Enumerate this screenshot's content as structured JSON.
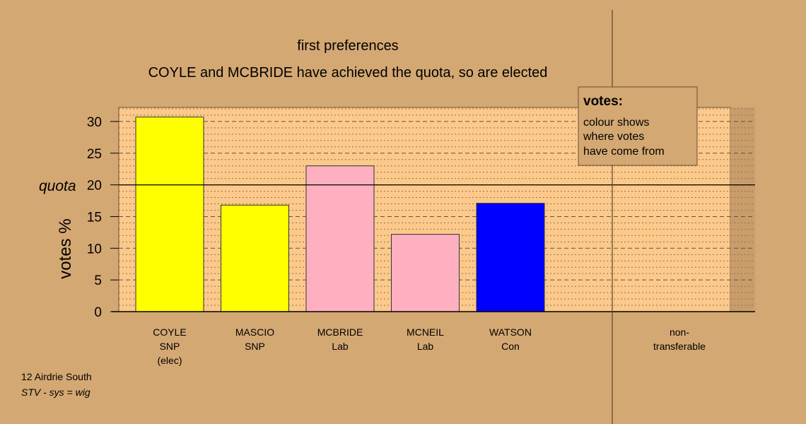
{
  "chart_data": {
    "type": "bar",
    "title": "first preferences",
    "subtitle": "COYLE and MCBRIDE have achieved the quota, so are elected",
    "ylabel": "votes %",
    "ylim": [
      0,
      32
    ],
    "yticks": [
      0,
      5,
      10,
      15,
      20,
      25,
      30
    ],
    "quota": 20,
    "quota_label": "quota",
    "categories": [
      {
        "name": "COYLE",
        "party": "SNP",
        "note": "(elec)",
        "value": 30.7,
        "color": "#ffff00"
      },
      {
        "name": "MASCIO",
        "party": "SNP",
        "note": "",
        "value": 16.8,
        "color": "#ffff00"
      },
      {
        "name": "MCBRIDE",
        "party": "Lab",
        "note": "",
        "value": 23.0,
        "color": "#ffb0c0"
      },
      {
        "name": "MCNEIL",
        "party": "Lab",
        "note": "",
        "value": 12.2,
        "color": "#ffb0c0"
      },
      {
        "name": "WATSON",
        "party": "Con",
        "note": "",
        "value": 17.1,
        "color": "#0000ff"
      }
    ],
    "nontransferable": {
      "line1": "non-",
      "line2": "transferable",
      "value": 0
    },
    "legend": {
      "title": "votes:",
      "lines": [
        "colour shows",
        "where votes",
        "have come from"
      ],
      "placement": "top-right"
    },
    "grid": true
  },
  "footer": {
    "line1": "12 Airdrie South",
    "line2": "STV - sys = wig"
  },
  "colors": {
    "background": "#d4a873",
    "plot_area": "#fcc98b",
    "legend_bg": "#d4a873"
  }
}
